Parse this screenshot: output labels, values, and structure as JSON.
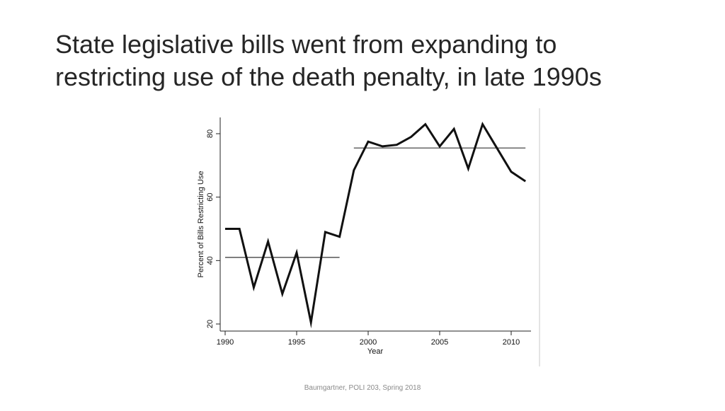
{
  "slide": {
    "title_lines": [
      "State legislative bills went from expanding to",
      "restricting use of the death penalty, in late 1990s"
    ],
    "footer": "Baumgartner, POLI 203, Spring 2018"
  },
  "chart_data": {
    "type": "line",
    "xlabel": "Year",
    "ylabel": "Percent of Bills Restricting Use",
    "xlim": [
      1990,
      2011
    ],
    "ylim": [
      20,
      83
    ],
    "x_ticks": [
      1990,
      1995,
      2000,
      2005,
      2010
    ],
    "y_ticks": [
      20,
      40,
      60,
      80
    ],
    "grid": false,
    "colors": {
      "line": "#111111",
      "mean_line": "#333333"
    },
    "series": [
      {
        "x": [
          1990,
          1991,
          1992,
          1993,
          1994,
          1995,
          1996,
          1997,
          1998,
          1999,
          2000,
          2001,
          2002,
          2003,
          2004,
          2005,
          2006,
          2007,
          2008,
          2009,
          2010,
          2011
        ],
        "y": [
          50,
          50,
          31.5,
          46,
          29.5,
          42.5,
          20.5,
          49,
          47.5,
          68.5,
          77.5,
          76,
          76.5,
          79,
          83,
          76,
          81.5,
          69,
          83,
          75.5,
          68,
          65
        ]
      }
    ],
    "mean_lines": [
      {
        "x": [
          1990,
          1998
        ],
        "y": 41
      },
      {
        "x": [
          1999,
          2011
        ],
        "y": 75.5
      }
    ]
  }
}
